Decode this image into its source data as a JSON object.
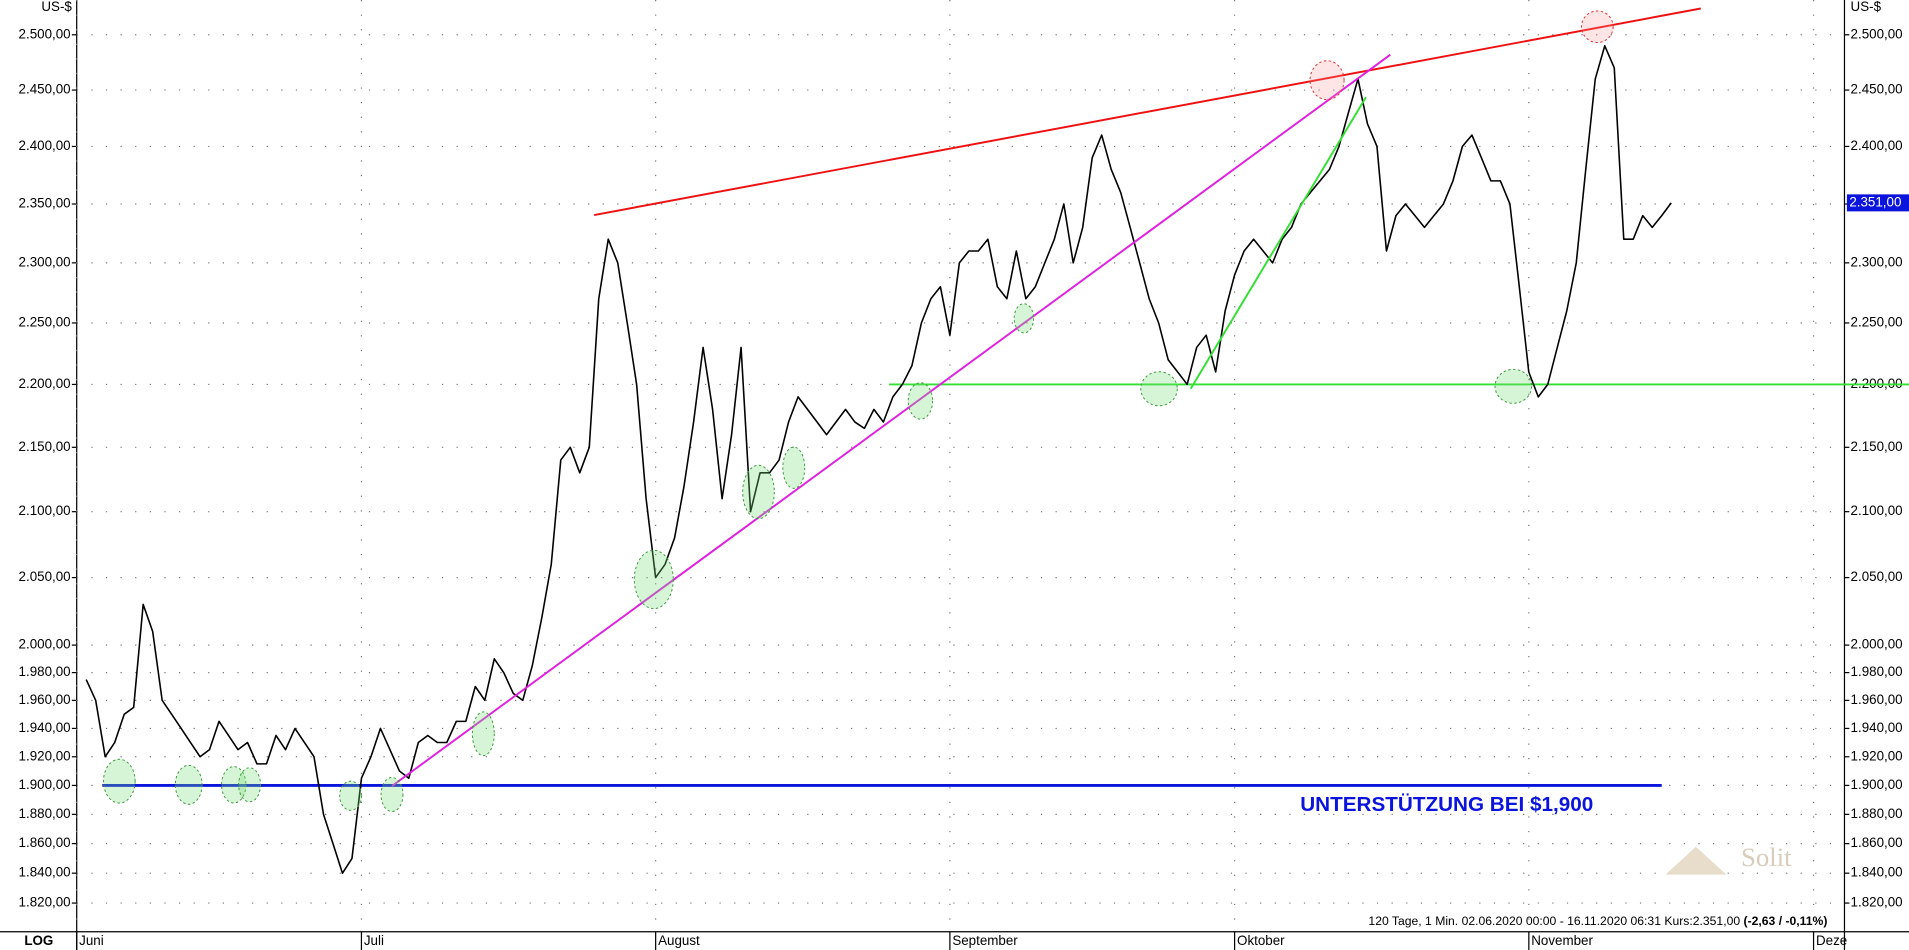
{
  "chart_data": {
    "type": "line",
    "y_label": "US-$",
    "scale_label": "LOG",
    "log_scale": true,
    "grid": true,
    "annotation": "UNTERSTÜTZUNG  BEI  $1,900",
    "watermark": "Solit",
    "footer": "120 Tage, 1 Min. 02.06.2020 00:00 - 16.11.2020 06:31  Kurs:2.351,00",
    "footer_change": "(-2,63 / -0,11%)",
    "last_price": {
      "value": 2351,
      "label": "2.351,00"
    },
    "ylim": [
      1801,
      2532
    ],
    "yticks": [
      {
        "value": 1820,
        "label": "1.820,00"
      },
      {
        "value": 1840,
        "label": "1.840,00"
      },
      {
        "value": 1860,
        "label": "1.860,00"
      },
      {
        "value": 1880,
        "label": "1.880,00"
      },
      {
        "value": 1900,
        "label": "1.900,00"
      },
      {
        "value": 1920,
        "label": "1.920,00"
      },
      {
        "value": 1940,
        "label": "1.940,00"
      },
      {
        "value": 1960,
        "label": "1.960,00"
      },
      {
        "value": 1980,
        "label": "1.980,00"
      },
      {
        "value": 2000,
        "label": "2.000,00"
      },
      {
        "value": 2050,
        "label": "2.050,00"
      },
      {
        "value": 2100,
        "label": "2.100,00"
      },
      {
        "value": 2150,
        "label": "2.150,00"
      },
      {
        "value": 2200,
        "label": "2.200,00"
      },
      {
        "value": 2250,
        "label": "2.250,00"
      },
      {
        "value": 2300,
        "label": "2.300,00"
      },
      {
        "value": 2350,
        "label": "2.350,00"
      },
      {
        "value": 2400,
        "label": "2.400,00"
      },
      {
        "value": 2450,
        "label": "2.450,00"
      },
      {
        "value": 2500,
        "label": "2.500,00"
      }
    ],
    "hlines": [
      {
        "value": 1900,
        "color": "#0a14dc"
      },
      {
        "value": 2200,
        "color": "#33e033"
      }
    ],
    "categories": [
      "Juni",
      null,
      null,
      null,
      null,
      null,
      null,
      null,
      null,
      null,
      null,
      null,
      null,
      null,
      null,
      null,
      null,
      null,
      null,
      null,
      null,
      null,
      null,
      null,
      null,
      null,
      null,
      null,
      null,
      null,
      "Juli",
      null,
      null,
      null,
      null,
      null,
      null,
      null,
      null,
      null,
      null,
      null,
      null,
      null,
      null,
      null,
      null,
      null,
      null,
      null,
      null,
      null,
      null,
      null,
      null,
      null,
      null,
      null,
      null,
      null,
      null,
      "August",
      null,
      null,
      null,
      null,
      null,
      null,
      null,
      null,
      null,
      null,
      null,
      null,
      null,
      null,
      null,
      null,
      null,
      null,
      null,
      null,
      null,
      null,
      null,
      null,
      null,
      null,
      null,
      null,
      null,
      null,
      "September",
      null,
      null,
      null,
      null,
      null,
      null,
      null,
      null,
      null,
      null,
      null,
      null,
      null,
      null,
      null,
      null,
      null,
      null,
      null,
      null,
      null,
      null,
      null,
      null,
      null,
      null,
      null,
      null,
      null,
      "Oktober",
      null,
      null,
      null,
      null,
      null,
      null,
      null,
      null,
      null,
      null,
      null,
      null,
      null,
      null,
      null,
      null,
      null,
      null,
      null,
      null,
      null,
      null,
      null,
      null,
      null,
      null,
      null,
      null,
      null,
      null,
      "November",
      null,
      null,
      null,
      null,
      null,
      null,
      null,
      null,
      null,
      null,
      null,
      null,
      null,
      null,
      null,
      null,
      null,
      null,
      null,
      null,
      null,
      null,
      null,
      null,
      null,
      null,
      null,
      null,
      null,
      "Deze",
      null,
      null,
      null
    ],
    "series": [
      {
        "name": "Kurs",
        "color": "#000000",
        "values": [
          null,
          1975,
          1960,
          1920,
          1930,
          1950,
          1955,
          2030,
          2010,
          1960,
          1950,
          1940,
          1930,
          1920,
          1925,
          1945,
          1935,
          1925,
          1930,
          1915,
          1915,
          1935,
          1925,
          1940,
          1930,
          1920,
          1880,
          1860,
          1840,
          1850,
          1905,
          1920,
          1940,
          1925,
          1910,
          1905,
          1930,
          1935,
          1930,
          1930,
          1945,
          1945,
          1970,
          1960,
          1990,
          1980,
          1965,
          1960,
          1985,
          2020,
          2060,
          2140,
          2150,
          2130,
          2150,
          2270,
          2320,
          2300,
          2250,
          2200,
          2110,
          2050,
          2060,
          2080,
          2120,
          2170,
          2230,
          2180,
          2110,
          2160,
          2230,
          2100,
          2130,
          2130,
          2140,
          2170,
          2190,
          2180,
          2170,
          2160,
          2170,
          2180,
          2170,
          2165,
          2180,
          2170,
          2190,
          2200,
          2215,
          2250,
          2270,
          2280,
          2240,
          2300,
          2310,
          2310,
          2320,
          2280,
          2270,
          2310,
          2270,
          2280,
          2300,
          2320,
          2350,
          2300,
          2330,
          2390,
          2410,
          2380,
          2360,
          2330,
          2300,
          2270,
          2250,
          2220,
          2210,
          2200,
          2230,
          2240,
          2210,
          2260,
          2290,
          2310,
          2320,
          2310,
          2300,
          2320,
          2330,
          2350,
          2360,
          2370,
          2380,
          2400,
          2430,
          2460,
          2420,
          2400,
          2310,
          2340,
          2350,
          2340,
          2330,
          2340,
          2350,
          2370,
          2400,
          2410,
          2390,
          2370,
          2370,
          2350,
          2280,
          2210,
          2190,
          2200,
          2230,
          2260,
          2300,
          2380,
          2460,
          2490,
          2470,
          2320,
          2320,
          2340,
          2330,
          2340,
          2351,
          null,
          null,
          null,
          null,
          null,
          null,
          null,
          null,
          null,
          null,
          null,
          null,
          null,
          null,
          null,
          null,
          null,
          null
        ]
      }
    ]
  }
}
